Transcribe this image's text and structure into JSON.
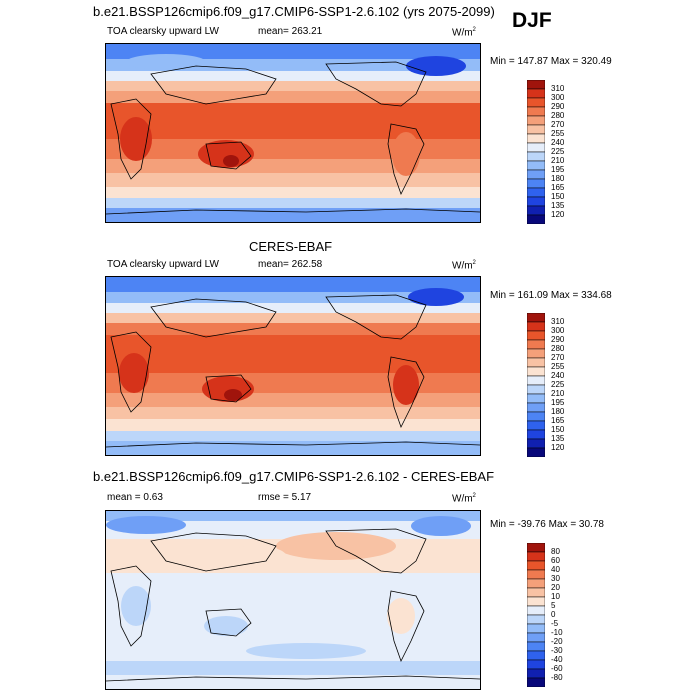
{
  "season": "DJF",
  "panels": [
    {
      "id": "model",
      "title": "b.e21.BSSP126cmip6.f09_g17.CMIP6-SSP1-2.6.102 (yrs 2075-2099)",
      "variable": "TOA clearsky upward LW",
      "mean_text": "mean= 263.21",
      "units": "W/m",
      "units_sup": "2",
      "minmax": "Min = 147.87 Max = 320.49"
    },
    {
      "id": "obs",
      "title": "CERES-EBAF",
      "variable": "TOA clearsky upward LW",
      "mean_text": "mean= 262.58",
      "units": "W/m",
      "units_sup": "2",
      "minmax": "Min = 161.09 Max = 334.68"
    },
    {
      "id": "diff",
      "title": "b.e21.BSSP126cmip6.f09_g17.CMIP6-SSP1-2.6.102 - CERES-EBAF",
      "mean_text": "mean =   0.63",
      "rmse_text": "rmse =   5.17",
      "units": "W/m",
      "units_sup": "2",
      "minmax": "Min = -39.76 Max =  30.78"
    }
  ],
  "chart_data": [
    {
      "type": "heatmap",
      "title": "b.e21.BSSP126cmip6.f09_g17.CMIP6-SSP1-2.6.102 (yrs 2075-2099)",
      "variable": "TOA clearsky upward LW",
      "units": "W/m2",
      "mean": 263.21,
      "min": 147.87,
      "max": 320.49,
      "levels": [
        120,
        135,
        150,
        165,
        180,
        195,
        210,
        225,
        240,
        255,
        270,
        280,
        290,
        300,
        310
      ],
      "colors": [
        "#08087a",
        "#1020b0",
        "#1f44e0",
        "#2f62ee",
        "#4d84f4",
        "#6f9ff6",
        "#93bcf8",
        "#bcd6f9",
        "#e6eefa",
        "#fbe3d2",
        "#f8c2a4",
        "#f4a07a",
        "#ef7a50",
        "#e8552b",
        "#d6331a",
        "#a0140c"
      ]
    },
    {
      "type": "heatmap",
      "title": "CERES-EBAF",
      "variable": "TOA clearsky upward LW",
      "units": "W/m2",
      "mean": 262.58,
      "min": 161.09,
      "max": 334.68,
      "levels": [
        120,
        135,
        150,
        165,
        180,
        195,
        210,
        225,
        240,
        255,
        270,
        280,
        290,
        300,
        310
      ],
      "colors": [
        "#08087a",
        "#1020b0",
        "#1f44e0",
        "#2f62ee",
        "#4d84f4",
        "#6f9ff6",
        "#93bcf8",
        "#bcd6f9",
        "#e6eefa",
        "#fbe3d2",
        "#f8c2a4",
        "#f4a07a",
        "#ef7a50",
        "#e8552b",
        "#d6331a",
        "#a0140c"
      ]
    },
    {
      "type": "heatmap",
      "title": "b.e21.BSSP126cmip6.f09_g17.CMIP6-SSP1-2.6.102 - CERES-EBAF",
      "units": "W/m2",
      "mean": 0.63,
      "rmse": 5.17,
      "min": -39.76,
      "max": 30.78,
      "levels": [
        -80,
        -60,
        -40,
        -30,
        -20,
        -10,
        -5,
        0,
        5,
        10,
        20,
        30,
        40,
        60,
        80
      ],
      "colors": [
        "#08087a",
        "#1020b0",
        "#1f44e0",
        "#2f62ee",
        "#4d84f4",
        "#6f9ff6",
        "#93bcf8",
        "#bcd6f9",
        "#e6eefa",
        "#fbe3d2",
        "#f8c2a4",
        "#f4a07a",
        "#ef7a50",
        "#e8552b",
        "#d6331a",
        "#a0140c"
      ]
    }
  ]
}
